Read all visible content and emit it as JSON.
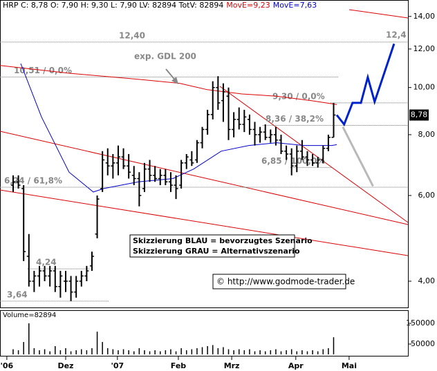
{
  "chart_data": {
    "type": "ohlc",
    "title": "HRP C: 8,78 O: 7,90 H: 9,30 L: 7,90 LV: 82894 TotV: 82894",
    "log_scale": true,
    "xlim": [
      0,
      155.3
    ],
    "xticks": [
      {
        "value": 2.6,
        "label": "'06"
      },
      {
        "value": 25,
        "label": "Dez"
      },
      {
        "value": 44.7,
        "label": "'07"
      },
      {
        "value": 67.9,
        "label": "Feb"
      },
      {
        "value": 88.2,
        "label": "Mrz"
      },
      {
        "value": 112.6,
        "label": "Apr"
      },
      {
        "value": 132.9,
        "label": "Mai"
      }
    ],
    "ylim": [
      3.556,
      14.74
    ],
    "yticks": [
      {
        "value": 4,
        "label": "4,00"
      },
      {
        "value": 6,
        "label": "6,00"
      },
      {
        "value": 8,
        "label": "8,00"
      },
      {
        "value": 10,
        "label": "10,00"
      },
      {
        "value": 12,
        "label": "12,00"
      },
      {
        "value": 14,
        "label": "14,00"
      }
    ],
    "bar_color": "#000000",
    "x": [
      5,
      7,
      9,
      11,
      13,
      15,
      17,
      19,
      21,
      23,
      25,
      27,
      29,
      31,
      33,
      35,
      37,
      39,
      41,
      43,
      45,
      47,
      49,
      51,
      53,
      55,
      57,
      59,
      61,
      63,
      65,
      67,
      69,
      71,
      73,
      75,
      77,
      79,
      81,
      83,
      85,
      87,
      89,
      91,
      93,
      95,
      97,
      99,
      101,
      103,
      105,
      107,
      109,
      111,
      113,
      115,
      117,
      119,
      121,
      123,
      125,
      127
    ],
    "open": [
      6.3,
      6.4,
      6.2,
      4.5,
      4.0,
      4.1,
      4.2,
      4.1,
      4.2,
      3.9,
      4.0,
      4.0,
      3.8,
      4.0,
      4.1,
      4.3,
      5.0,
      6.2,
      7.0,
      6.9,
      7.0,
      7.2,
      6.9,
      6.6,
      6.5,
      6.2,
      6.8,
      6.6,
      6.5,
      6.6,
      6.4,
      6.3,
      6.3,
      7.0,
      7.1,
      7.1,
      7.7,
      8.2,
      8.8,
      10.0,
      9.4,
      9.6,
      8.2,
      8.6,
      8.4,
      8.6,
      8.2,
      8.0,
      8.1,
      7.9,
      8.0,
      7.8,
      7.4,
      7.3,
      6.9,
      7.4,
      7.2,
      7.1,
      7.0,
      7.1,
      7.5,
      7.9
    ],
    "high": [
      6.6,
      6.6,
      6.3,
      5.0,
      4.2,
      4.3,
      4.3,
      4.3,
      4.3,
      4.2,
      4.2,
      4.1,
      4.1,
      4.2,
      4.3,
      4.6,
      6.0,
      7.4,
      7.5,
      7.3,
      7.6,
      7.5,
      7.3,
      6.9,
      6.7,
      7.0,
      7.1,
      6.9,
      6.8,
      6.8,
      6.7,
      6.6,
      7.1,
      7.3,
      7.4,
      7.8,
      8.3,
      9.0,
      10.3,
      10.55,
      10.2,
      10.0,
      8.9,
      9.1,
      9.0,
      8.8,
      8.5,
      8.3,
      8.4,
      8.2,
      8.3,
      8.0,
      7.6,
      7.5,
      7.6,
      7.8,
      7.4,
      7.3,
      7.2,
      7.6,
      8.0,
      9.3
    ],
    "low": [
      6.1,
      6.2,
      4.4,
      3.9,
      3.8,
      3.9,
      4.0,
      3.9,
      3.8,
      3.7,
      3.8,
      3.64,
      3.7,
      3.9,
      4.0,
      4.2,
      4.9,
      6.1,
      6.6,
      6.5,
      6.6,
      6.8,
      6.5,
      6.3,
      5.7,
      6.1,
      6.4,
      6.4,
      6.3,
      6.3,
      6.1,
      5.9,
      6.2,
      6.8,
      6.9,
      7.0,
      7.5,
      8.0,
      8.6,
      9.0,
      8.5,
      7.8,
      7.9,
      8.2,
      8.1,
      8.0,
      7.6,
      7.7,
      7.8,
      7.7,
      7.6,
      7.3,
      7.1,
      6.6,
      6.7,
      7.1,
      6.9,
      6.9,
      6.85,
      7.0,
      7.4,
      7.9
    ],
    "close": [
      6.4,
      6.3,
      4.6,
      4.0,
      4.1,
      4.2,
      4.1,
      4.2,
      3.9,
      4.1,
      4.0,
      3.8,
      4.0,
      4.1,
      4.2,
      4.5,
      5.9,
      7.1,
      6.9,
      7.0,
      7.2,
      6.9,
      6.7,
      6.5,
      6.0,
      6.8,
      6.6,
      6.5,
      6.6,
      6.4,
      6.3,
      6.2,
      7.0,
      7.2,
      7.0,
      7.7,
      8.2,
      8.8,
      10.0,
      9.3,
      9.8,
      8.2,
      8.6,
      8.4,
      8.7,
      8.2,
      8.0,
      8.1,
      7.9,
      8.0,
      7.8,
      7.4,
      7.3,
      6.9,
      7.4,
      7.2,
      7.1,
      7.0,
      7.1,
      7.5,
      7.9,
      8.78
    ],
    "volume": [
      25000,
      20000,
      60000,
      150000,
      30000,
      20000,
      25000,
      15000,
      40000,
      20000,
      30000,
      15000,
      20000,
      25000,
      20000,
      30000,
      110000,
      60000,
      30000,
      25000,
      20000,
      25000,
      20000,
      15000,
      30000,
      20000,
      15000,
      20000,
      15000,
      20000,
      25000,
      15000,
      30000,
      20000,
      25000,
      30000,
      35000,
      40000,
      45000,
      30000,
      35000,
      25000,
      20000,
      25000,
      20000,
      25000,
      15000,
      20000,
      15000,
      20000,
      25000,
      15000,
      20000,
      25000,
      15000,
      20000,
      15000,
      20000,
      15000,
      25000,
      30000,
      82894
    ],
    "volume_label": "Volume=82894",
    "volume_ylim": [
      0,
      210000
    ],
    "volume_yticks": [
      150000,
      50000
    ],
    "volume_color": "#000000",
    "series": [
      {
        "name": "MovE=9,23",
        "color": "#dd0000",
        "x": [
          0,
          26.3,
          52.6,
          68.4,
          78.9,
          92.1,
          105.3,
          118.4,
          128.2
        ],
        "values": [
          11.1,
          10.7,
          10.4,
          10.2,
          9.9,
          9.7,
          9.6,
          9.4,
          9.23
        ]
      },
      {
        "name": "MovE=7,63",
        "color": "#0000cc",
        "x": [
          7.9,
          15.8,
          26.3,
          35.5,
          39.5,
          52.6,
          65.8,
          73.7,
          84.2,
          94.7,
          105.3,
          115.8,
          126.3,
          128.2
        ],
        "values": [
          11.2,
          8.7,
          6.7,
          6.1,
          6.2,
          6.4,
          6.5,
          6.8,
          7.4,
          7.6,
          7.7,
          7.6,
          7.6,
          7.63
        ]
      }
    ],
    "scenarios": [
      {
        "color": "#0022cc",
        "x": [
          128.2,
          131,
          134.2,
          137.4,
          140,
          142.6,
          150
        ],
        "values": [
          8.78,
          8.4,
          9.3,
          9.3,
          10.5,
          9.35,
          12.3
        ]
      },
      {
        "color": "#b8b8b8",
        "x": [
          130.5,
          142
        ],
        "values": [
          8.3,
          6.27
        ]
      }
    ],
    "levels": [
      {
        "value": 12.4,
        "label": "12,40"
      },
      {
        "value": 10.51,
        "label": "10,51 / 0,0%"
      },
      {
        "value": 9.3,
        "label": "9,30 / 0,0%"
      },
      {
        "value": 8.36,
        "label": "8,36 / 38,2%"
      },
      {
        "value": 6.85,
        "label": "6,85 / 100,0%"
      },
      {
        "value": 6.24,
        "label": "6,24 / 61,8%"
      },
      {
        "value": 4.24,
        "label": "4,24"
      },
      {
        "value": 3.64,
        "label": "3,64"
      },
      {
        "value": 12.4,
        "label": "12,4"
      }
    ],
    "last_price": {
      "value": 8.78,
      "label": "8,78"
    },
    "annotation": "exp. GDL 200",
    "legend_lines": [
      "Skizzierung BLAU = bevorzugtes Szenario",
      "Skizzierung GRAU = Alternativszenario"
    ],
    "copyright": "© http://www.godmode-trader.de"
  }
}
